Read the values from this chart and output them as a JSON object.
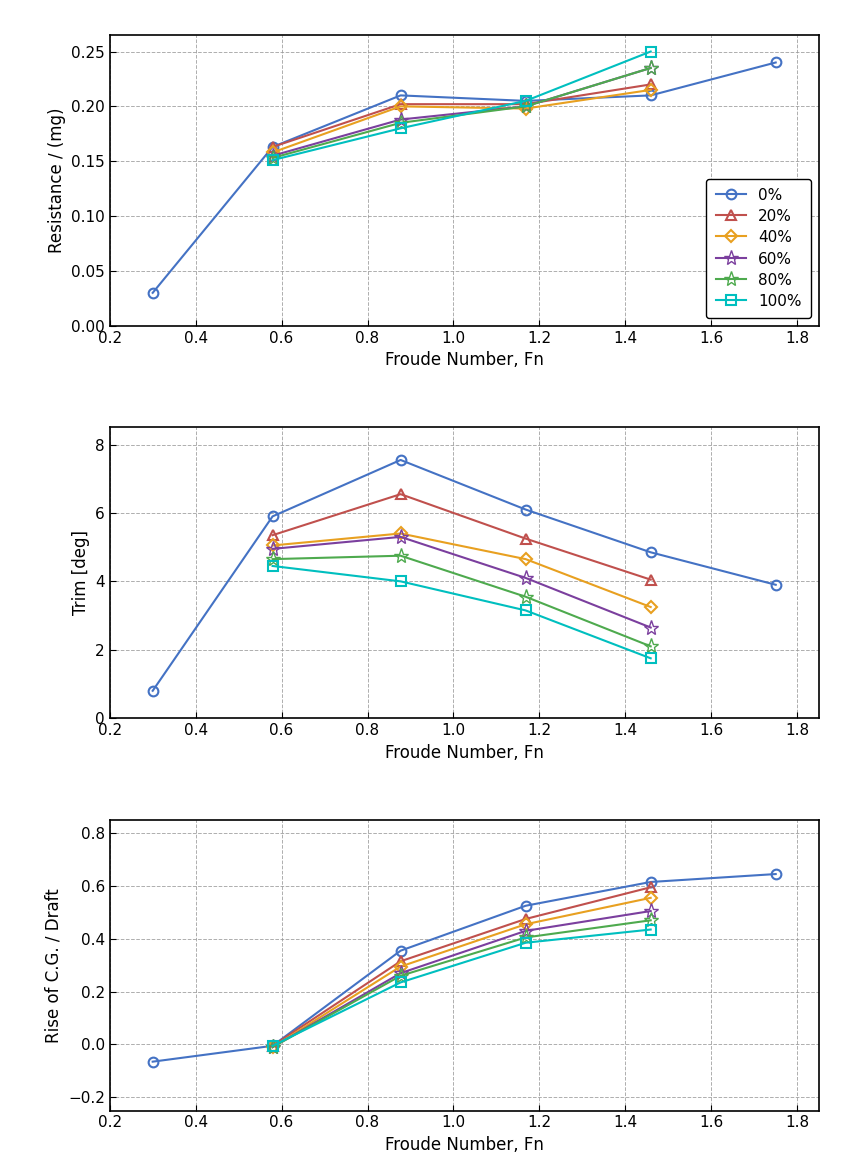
{
  "resistance_fn": {
    "0%": [
      0.3,
      0.579,
      0.877,
      1.168,
      1.459,
      1.75
    ],
    "20%": [
      0.579,
      0.877,
      1.168,
      1.459
    ],
    "40%": [
      0.579,
      0.877,
      1.168,
      1.459
    ],
    "60%": [
      0.579,
      0.877,
      1.168,
      1.459
    ],
    "80%": [
      0.579,
      0.877,
      1.168,
      1.459
    ],
    "100%": [
      0.579,
      0.877,
      1.168,
      1.459
    ]
  },
  "resistance_vals": {
    "0%": [
      0.03,
      0.163,
      0.21,
      0.205,
      0.21,
      0.24
    ],
    "20%": [
      0.163,
      0.202,
      0.202,
      0.22
    ],
    "40%": [
      0.158,
      0.2,
      0.198,
      0.215
    ],
    "60%": [
      0.155,
      0.188,
      0.2,
      0.235
    ],
    "80%": [
      0.153,
      0.185,
      0.2,
      0.235
    ],
    "100%": [
      0.151,
      0.18,
      0.205,
      0.25
    ]
  },
  "trim_fn": {
    "0%": [
      0.3,
      0.579,
      0.877,
      1.168,
      1.459,
      1.75
    ],
    "20%": [
      0.579,
      0.877,
      1.168,
      1.459
    ],
    "40%": [
      0.579,
      0.877,
      1.168,
      1.459
    ],
    "60%": [
      0.579,
      0.877,
      1.168,
      1.459
    ],
    "80%": [
      0.579,
      0.877,
      1.168,
      1.459
    ],
    "100%": [
      0.579,
      0.877,
      1.168,
      1.459
    ]
  },
  "trim_vals": {
    "0%": [
      0.8,
      5.9,
      7.55,
      6.1,
      4.85,
      3.9
    ],
    "20%": [
      5.35,
      6.55,
      5.25,
      4.05
    ],
    "40%": [
      5.05,
      5.4,
      4.65,
      3.25
    ],
    "60%": [
      4.95,
      5.3,
      4.1,
      2.65
    ],
    "80%": [
      4.65,
      4.75,
      3.55,
      2.1
    ],
    "100%": [
      4.45,
      4.0,
      3.15,
      1.75
    ]
  },
  "rise_fn": {
    "0%": [
      0.3,
      0.579,
      0.877,
      1.168,
      1.459,
      1.75
    ],
    "20%": [
      0.579,
      0.877,
      1.168,
      1.459
    ],
    "40%": [
      0.579,
      0.877,
      1.168,
      1.459
    ],
    "60%": [
      0.579,
      0.877,
      1.168,
      1.459
    ],
    "80%": [
      0.579,
      0.877,
      1.168,
      1.459
    ],
    "100%": [
      0.579,
      0.877,
      1.168,
      1.459
    ]
  },
  "rise_vals": {
    "0%": [
      -0.065,
      -0.005,
      0.355,
      0.525,
      0.615,
      0.645
    ],
    "20%": [
      -0.005,
      0.315,
      0.475,
      0.595
    ],
    "40%": [
      -0.01,
      0.295,
      0.455,
      0.555
    ],
    "60%": [
      -0.01,
      0.27,
      0.43,
      0.505
    ],
    "80%": [
      -0.01,
      0.26,
      0.405,
      0.47
    ],
    "100%": [
      -0.005,
      0.235,
      0.385,
      0.435
    ]
  },
  "series": [
    "0%",
    "20%",
    "40%",
    "60%",
    "80%",
    "100%"
  ],
  "colors": [
    "#4472C4",
    "#C0504D",
    "#E8A020",
    "#7B3F9E",
    "#4EAA4E",
    "#00BFBF"
  ],
  "markers": [
    "o",
    "^",
    "D",
    "*",
    "*",
    "s"
  ],
  "marker_sizes": [
    8,
    8,
    8,
    12,
    12,
    8
  ],
  "markeredge_widths": [
    1.5,
    1.5,
    1.5,
    1.5,
    1.5,
    1.5
  ],
  "xlim": [
    0.2,
    1.85
  ],
  "xticks": [
    0.2,
    0.4,
    0.6,
    0.8,
    1.0,
    1.2,
    1.4,
    1.6,
    1.8
  ],
  "ylim_resist": [
    0,
    0.265
  ],
  "yticks_resist": [
    0,
    0.05,
    0.1,
    0.15,
    0.2,
    0.25
  ],
  "ylim_trim": [
    0,
    8.5
  ],
  "yticks_trim": [
    0,
    2,
    4,
    6,
    8
  ],
  "ylim_rise": [
    -0.25,
    0.85
  ],
  "yticks_rise": [
    -0.2,
    0.0,
    0.2,
    0.4,
    0.6,
    0.8
  ],
  "xlabel": "Froude Number, Fn",
  "ylabel_resist": "Resistance / (mg)",
  "ylabel_trim": "Trim [deg]",
  "ylabel_rise": "Rise of C.G. / Draft",
  "grid_color": "#999999",
  "grid_linestyle": "--",
  "grid_linewidth": 0.7,
  "grid_alpha": 0.8,
  "line_width": 1.5,
  "tick_labelsize": 11,
  "label_fontsize": 12,
  "legend_fontsize": 11
}
